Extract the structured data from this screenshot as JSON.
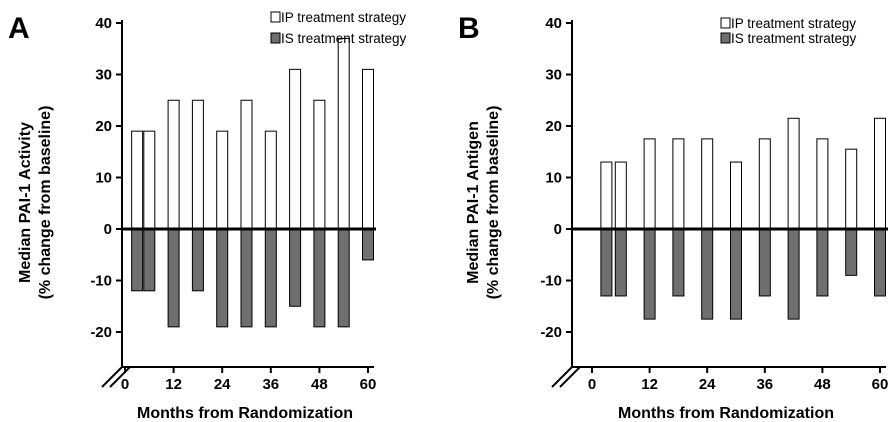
{
  "colors": {
    "ip": "#ffffff",
    "is": "#6f6f6f",
    "stroke": "#000000"
  },
  "chart_data": [
    {
      "type": "bar",
      "panel_label": "A",
      "ylabel": [
        "Median PAI-1 Activity",
        "(% change from baseline)"
      ],
      "xlabel": "Months from Randomization",
      "ylim": [
        -25,
        40
      ],
      "yticks": [
        -20,
        -10,
        0,
        10,
        20,
        30,
        40
      ],
      "xlim": [
        -3,
        61
      ],
      "xticks": [
        0,
        12,
        24,
        36,
        48,
        60
      ],
      "grid": false,
      "legend_position": "top-right",
      "axis_break": true,
      "series": [
        {
          "name": "IP treatment strategy",
          "x": [
            3,
            6,
            12,
            18,
            24,
            30,
            36,
            42,
            48,
            54,
            60
          ],
          "values": [
            19,
            19,
            25,
            25,
            19,
            25,
            19,
            31,
            25,
            37,
            31
          ]
        },
        {
          "name": "IS treatment strategy",
          "x": [
            3,
            6,
            12,
            18,
            24,
            30,
            36,
            42,
            48,
            54,
            60
          ],
          "values": [
            -12,
            -12,
            -19,
            -12,
            -19,
            -19,
            -19,
            -15,
            -19,
            -19,
            -6
          ]
        }
      ]
    },
    {
      "type": "bar",
      "panel_label": "B",
      "ylabel": [
        "Median PAI-1 Antigen",
        "(% change from baseline)"
      ],
      "xlabel": "Months from Randomization",
      "ylim": [
        -25,
        40
      ],
      "yticks": [
        -20,
        -10,
        0,
        10,
        20,
        30,
        40
      ],
      "xlim": [
        -3,
        61
      ],
      "xticks": [
        0,
        12,
        24,
        36,
        48,
        60
      ],
      "grid": false,
      "legend_position": "top-right",
      "axis_break": true,
      "series": [
        {
          "name": "IP treatment strategy",
          "x": [
            3,
            6,
            12,
            18,
            24,
            30,
            36,
            42,
            48,
            54,
            60
          ],
          "values": [
            13,
            13,
            17.5,
            17.5,
            17.5,
            13,
            17.5,
            21.5,
            17.5,
            15.5,
            21.5
          ]
        },
        {
          "name": "IS treatment strategy",
          "x": [
            3,
            6,
            12,
            18,
            24,
            30,
            36,
            42,
            48,
            54,
            60
          ],
          "values": [
            -13,
            -13,
            -17.5,
            -13,
            -17.5,
            -17.5,
            -13,
            -17.5,
            -13,
            -9,
            -13
          ]
        }
      ]
    }
  ]
}
